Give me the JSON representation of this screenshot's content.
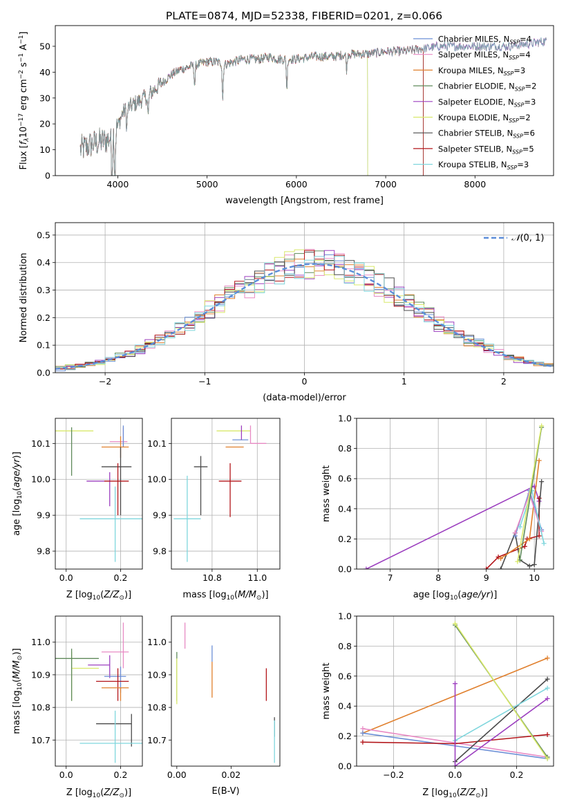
{
  "figure": {
    "title": "PLATE=0874, MJD=52338, FIBERID=0201, z=0.066"
  },
  "colors": {
    "Chabrier MILES": "#6b8fd6",
    "Salpeter MILES": "#e88ac4",
    "Kroupa MILES": "#e07f2c",
    "Chabrier ELODIE": "#5f8a5a",
    "Salpeter ELODIE": "#9c3fbf",
    "Kroupa ELODIE": "#d8e86a",
    "Chabrier STELIB": "#4a4a4a",
    "Salpeter STELIB": "#b3151a",
    "Kroupa STELIB": "#7fd6dd"
  },
  "chart_data": [
    {
      "id": "spectrum",
      "type": "line",
      "title": "PLATE=0874, MJD=52338, FIBERID=0201, z=0.066",
      "xlabel": "wavelength [Angstrom, rest frame]",
      "ylabel": "Flux [f_λ10^{-17} erg cm^{-2} s^{-1} A^{-1}]",
      "ylabel_parts": {
        "pre": "Flux [",
        "f": "f",
        "lam": "λ",
        "ten": "10",
        "e1": "−17",
        "mid": " erg cm",
        "e2": "−2",
        "s": " s",
        "e3": "−1",
        "A": " A",
        "e4": "−1",
        "post": "]"
      },
      "xlim": [
        3300,
        8880
      ],
      "ylim": [
        0,
        58
      ],
      "xticks": [
        4000,
        5000,
        6000,
        7000,
        8000
      ],
      "yticks": [
        0,
        10,
        20,
        30,
        40,
        50
      ],
      "legend_position": "top-right",
      "legend": [
        {
          "model": "Chabrier MILES",
          "n": "4"
        },
        {
          "model": "Salpeter MILES",
          "n": "4"
        },
        {
          "model": "Kroupa MILES",
          "n": "3"
        },
        {
          "model": "Chabrier ELODIE",
          "n": "2"
        },
        {
          "model": "Salpeter ELODIE",
          "n": "3"
        },
        {
          "model": "Kroupa ELODIE",
          "n": "2"
        },
        {
          "model": "Chabrier STELIB",
          "n": "6"
        },
        {
          "model": "Salpeter STELIB",
          "n": "5"
        },
        {
          "model": "Kroupa STELIB",
          "n": "3"
        }
      ],
      "legend_n_label": "N",
      "legend_n_sub": "SSP",
      "continuum": [
        [
          3580,
          10
        ],
        [
          3700,
          12
        ],
        [
          3800,
          13
        ],
        [
          3900,
          14
        ],
        [
          4000,
          19
        ],
        [
          4050,
          24
        ],
        [
          4100,
          26
        ],
        [
          4200,
          28
        ],
        [
          4300,
          30
        ],
        [
          4400,
          33
        ],
        [
          4500,
          36
        ],
        [
          4600,
          39
        ],
        [
          4700,
          41
        ],
        [
          4800,
          42
        ],
        [
          4900,
          43
        ],
        [
          5000,
          44
        ],
        [
          5100,
          44
        ],
        [
          5200,
          43
        ],
        [
          5300,
          44
        ],
        [
          5400,
          45
        ],
        [
          5500,
          45
        ],
        [
          5600,
          45
        ],
        [
          5700,
          46
        ],
        [
          5800,
          45
        ],
        [
          6000,
          45
        ],
        [
          6200,
          46
        ],
        [
          6400,
          46
        ],
        [
          6600,
          47
        ],
        [
          6800,
          47
        ],
        [
          7000,
          48
        ],
        [
          7200,
          48
        ],
        [
          7400,
          49
        ],
        [
          7600,
          50
        ],
        [
          7800,
          50
        ],
        [
          8000,
          50
        ],
        [
          8200,
          50
        ],
        [
          8400,
          50
        ],
        [
          8600,
          51
        ],
        [
          8800,
          52
        ]
      ],
      "absorption_lines": [
        [
          3934,
          20
        ],
        [
          3968,
          18
        ],
        [
          4101,
          8
        ],
        [
          4340,
          9
        ],
        [
          4861,
          8
        ],
        [
          5175,
          14
        ],
        [
          5893,
          12
        ],
        [
          6563,
          6
        ]
      ],
      "model_cutoffs": {
        "Kroupa ELODIE": 6800,
        "Chabrier ELODIE": 6800,
        "Salpeter STELIB": 7420,
        "Kroupa MILES": 7420,
        "Chabrier STELIB": 7420
      }
    },
    {
      "id": "residuals",
      "type": "histogram",
      "xlabel": "(data-model)/error",
      "ylabel": "Normed distribution",
      "xlim": [
        -2.5,
        2.5
      ],
      "ylim": [
        0,
        0.545
      ],
      "xticks": [
        -2,
        -1,
        0,
        1,
        2
      ],
      "yticks": [
        0.0,
        0.1,
        0.2,
        0.3,
        0.4,
        0.5
      ],
      "grid": true,
      "legend_position": "top-right",
      "reference_curve": {
        "label": "𝒩(0, 1)",
        "label_base": "𝒩",
        "label_args": "(0, 1)",
        "mean": 0.1,
        "sigma": 1.0,
        "peak": 0.395,
        "color": "#5b8dd9"
      },
      "bin_width": 0.1
    },
    {
      "id": "age-vs-Z",
      "type": "scatter",
      "xlabel": "Z [log10(Z/Z⊙)]",
      "ylabel": "age [log10(age/yr)]",
      "xlim": [
        -0.04,
        0.28
      ],
      "ylim": [
        9.75,
        10.17
      ],
      "xticks": [
        0.0,
        0.2
      ],
      "yticks": [
        9.8,
        9.9,
        10.0,
        10.1
      ],
      "grid": true,
      "points": [
        {
          "model": "Kroupa ELODIE",
          "x": 0.1,
          "y": 10.135,
          "xerr": [
            0.18,
            0.0
          ],
          "yerr": [
            0.0,
            0.0
          ]
        },
        {
          "model": "Chabrier ELODIE",
          "x": 0.02,
          "y": 10.135,
          "xerr": [
            0.0,
            0.0
          ],
          "yerr": [
            0.125,
            0.01
          ]
        },
        {
          "model": "Salpeter MILES",
          "x": 0.21,
          "y": 10.105,
          "xerr": [
            0.05,
            0.015
          ],
          "yerr": [
            0.015,
            0.04
          ]
        },
        {
          "model": "Chabrier MILES",
          "x": 0.21,
          "y": 10.11,
          "xerr": [
            0.0,
            0.0
          ],
          "yerr": [
            0.02,
            0.04
          ]
        },
        {
          "model": "Kroupa MILES",
          "x": 0.2,
          "y": 10.09,
          "xerr": [
            0.07,
            0.03
          ],
          "yerr": [
            0.03,
            0.03
          ]
        },
        {
          "model": "Chabrier STELIB",
          "x": 0.2,
          "y": 10.035,
          "xerr": [
            0.07,
            0.04
          ],
          "yerr": [
            0.135,
            0.055
          ]
        },
        {
          "model": "Salpeter ELODIE",
          "x": 0.16,
          "y": 9.995,
          "xerr": [
            0.085,
            0.0
          ],
          "yerr": [
            0.07,
            0.025
          ]
        },
        {
          "model": "Salpeter STELIB",
          "x": 0.19,
          "y": 9.995,
          "xerr": [
            0.05,
            0.04
          ],
          "yerr": [
            0.095,
            0.05
          ]
        },
        {
          "model": "Kroupa STELIB",
          "x": 0.18,
          "y": 9.89,
          "xerr": [
            0.13,
            0.1
          ],
          "yerr": [
            0.12,
            0.09
          ]
        }
      ]
    },
    {
      "id": "age-vs-mass",
      "type": "scatter",
      "xlabel": "mass [log10(M/M⊙)]",
      "ylabel": "",
      "xlim": [
        10.62,
        11.1
      ],
      "ylim": [
        9.75,
        10.17
      ],
      "xticks": [
        10.8,
        11.0
      ],
      "yticks": [
        9.8,
        9.9,
        10.0,
        10.1
      ],
      "grid": true,
      "points": [
        {
          "model": "Kroupa ELODIE",
          "x": 10.92,
          "y": 10.135,
          "xerr": [
            0.1,
            0.05
          ],
          "yerr": [
            0.0,
            0.0
          ]
        },
        {
          "model": "Chabrier ELODIE",
          "x": 10.95,
          "y": 10.135,
          "xerr": [
            0.0,
            0.0
          ],
          "yerr": [
            0.0,
            0.0
          ]
        },
        {
          "model": "Salpeter MILES",
          "x": 10.97,
          "y": 10.1,
          "xerr": [
            0.0,
            0.07
          ],
          "yerr": [
            0.0,
            0.05
          ]
        },
        {
          "model": "Chabrier MILES",
          "x": 10.89,
          "y": 10.11,
          "xerr": [
            0.0,
            0.07
          ],
          "yerr": [
            0.0,
            0.0
          ]
        },
        {
          "model": "Kroupa MILES",
          "x": 10.86,
          "y": 10.09,
          "xerr": [
            0.0,
            0.08
          ],
          "yerr": [
            0.0,
            0.0
          ]
        },
        {
          "model": "Salpeter ELODIE",
          "x": 10.93,
          "y": 10.13,
          "xerr": [
            0.0,
            0.0
          ],
          "yerr": [
            0.02,
            0.02
          ]
        },
        {
          "model": "Chabrier STELIB",
          "x": 10.75,
          "y": 10.035,
          "xerr": [
            0.03,
            0.03
          ],
          "yerr": [
            0.135,
            0.03
          ]
        },
        {
          "model": "Salpeter STELIB",
          "x": 10.88,
          "y": 9.995,
          "xerr": [
            0.05,
            0.05
          ],
          "yerr": [
            0.1,
            0.05
          ]
        },
        {
          "model": "Kroupa STELIB",
          "x": 10.69,
          "y": 9.89,
          "xerr": [
            0.06,
            0.06
          ],
          "yerr": [
            0.12,
            0.12
          ]
        }
      ]
    },
    {
      "id": "weight-vs-age",
      "type": "line",
      "xlabel": "age [log10(age/yr)]",
      "ylabel": "mass weight",
      "xlim": [
        6.3,
        10.4
      ],
      "ylim": [
        0,
        1.0
      ],
      "xticks": [
        7,
        8,
        9,
        10
      ],
      "yticks": [
        0.0,
        0.2,
        0.4,
        0.6,
        0.8,
        1.0
      ],
      "grid": true,
      "series": [
        {
          "model": "Salpeter ELODIE",
          "x": [
            6.5,
            10.0,
            10.1
          ],
          "y": [
            0.0,
            0.55,
            0.45
          ]
        },
        {
          "model": "Salpeter STELIB",
          "x": [
            9.0,
            9.25,
            9.8,
            9.85,
            10.1,
            10.1
          ],
          "y": [
            0.0,
            0.08,
            0.15,
            0.2,
            0.22,
            0.47
          ]
        },
        {
          "model": "Chabrier STELIB",
          "x": [
            9.3,
            9.6,
            9.7,
            9.9,
            10.0,
            10.15
          ],
          "y": [
            0.0,
            0.24,
            0.06,
            0.02,
            0.03,
            0.58
          ]
        },
        {
          "model": "Kroupa MILES",
          "x": [
            9.3,
            9.9,
            10.1
          ],
          "y": [
            0.07,
            0.2,
            0.72
          ]
        },
        {
          "model": "Chabrier MILES",
          "x": [
            9.6,
            9.9,
            10.15
          ],
          "y": [
            0.22,
            0.52,
            0.26
          ]
        },
        {
          "model": "Salpeter MILES",
          "x": [
            9.6,
            9.9,
            10.15
          ],
          "y": [
            0.24,
            0.5,
            0.25
          ]
        },
        {
          "model": "Kroupa STELIB",
          "x": [
            9.7,
            9.95,
            10.2
          ],
          "y": [
            0.28,
            0.52,
            0.17
          ]
        },
        {
          "model": "Chabrier ELODIE",
          "x": [
            9.7,
            10.15
          ],
          "y": [
            0.06,
            0.94
          ]
        },
        {
          "model": "Kroupa ELODIE",
          "x": [
            9.65,
            10.15
          ],
          "y": [
            0.05,
            0.95
          ]
        }
      ]
    },
    {
      "id": "mass-vs-Z",
      "type": "scatter",
      "xlabel": "Z [log10(Z/Z⊙)]",
      "ylabel": "mass [log10(M/M⊙)]",
      "xlim": [
        -0.04,
        0.28
      ],
      "ylim": [
        10.62,
        11.08
      ],
      "xticks": [
        0.0,
        0.2
      ],
      "yticks": [
        10.7,
        10.8,
        10.9,
        11.0
      ],
      "grid": true,
      "points": [
        {
          "model": "Salpeter MILES",
          "x": 0.21,
          "y": 10.97,
          "xerr": [
            0.08,
            0.02
          ],
          "yerr": [
            0.05,
            0.09
          ]
        },
        {
          "model": "Kroupa ELODIE",
          "x": 0.02,
          "y": 10.92,
          "xerr": [
            0.0,
            0.1
          ],
          "yerr": [
            0.1,
            0.05
          ]
        },
        {
          "model": "Chabrier ELODIE",
          "x": 0.02,
          "y": 10.95,
          "xerr": [
            0.08,
            0.1
          ],
          "yerr": [
            0.13,
            0.03
          ]
        },
        {
          "model": "Salpeter ELODIE",
          "x": 0.16,
          "y": 10.93,
          "xerr": [
            0.08,
            0.0
          ],
          "yerr": [
            0.04,
            0.03
          ]
        },
        {
          "model": "Chabrier MILES",
          "x": 0.2,
          "y": 10.895,
          "xerr": [
            0.06,
            0.02
          ],
          "yerr": [
            0.05,
            0.03
          ]
        },
        {
          "model": "Salpeter STELIB",
          "x": 0.19,
          "y": 10.88,
          "xerr": [
            0.08,
            0.04
          ],
          "yerr": [
            0.06,
            0.04
          ]
        },
        {
          "model": "Kroupa MILES",
          "x": 0.2,
          "y": 10.86,
          "xerr": [
            0.07,
            0.03
          ],
          "yerr": [
            0.04,
            0.0
          ]
        },
        {
          "model": "Chabrier STELIB",
          "x": 0.24,
          "y": 10.75,
          "xerr": [
            0.13,
            0.0
          ],
          "yerr": [
            0.07,
            0.03
          ]
        },
        {
          "model": "Kroupa STELIB",
          "x": 0.18,
          "y": 10.69,
          "xerr": [
            0.13,
            0.1
          ],
          "yerr": [
            0.06,
            0.1
          ]
        }
      ]
    },
    {
      "id": "mass-vs-ebv",
      "type": "scatter",
      "xlabel": "E(B-V)",
      "ylabel": "",
      "xlim": [
        -0.002,
        0.038
      ],
      "ylim": [
        10.62,
        11.08
      ],
      "xticks": [
        0.0,
        0.02
      ],
      "yticks": [
        10.7,
        10.8,
        10.9,
        11.0
      ],
      "grid": false,
      "points": [
        {
          "model": "Salpeter MILES",
          "x": 0.003,
          "y": 11.0,
          "xerr": [
            0,
            0
          ],
          "yerr": [
            0.02,
            0.06
          ]
        },
        {
          "model": "Chabrier ELODIE",
          "x": 0.0,
          "y": 10.95,
          "xerr": [
            0,
            0
          ],
          "yerr": [
            0.13,
            0.02
          ]
        },
        {
          "model": "Kroupa ELODIE",
          "x": 0.0,
          "y": 10.88,
          "xerr": [
            0,
            0
          ],
          "yerr": [
            0.07,
            0.07
          ]
        },
        {
          "model": "Chabrier MILES",
          "x": 0.013,
          "y": 10.95,
          "xerr": [
            0,
            0
          ],
          "yerr": [
            0.01,
            0.04
          ]
        },
        {
          "model": "Kroupa MILES",
          "x": 0.013,
          "y": 10.89,
          "xerr": [
            0,
            0
          ],
          "yerr": [
            0.06,
            0.05
          ]
        },
        {
          "model": "Salpeter STELIB",
          "x": 0.033,
          "y": 10.87,
          "xerr": [
            0,
            0
          ],
          "yerr": [
            0.05,
            0.05
          ]
        },
        {
          "model": "Chabrier STELIB",
          "x": 0.036,
          "y": 10.74,
          "xerr": [
            0,
            0
          ],
          "yerr": [
            0.03,
            0.03
          ]
        },
        {
          "model": "Kroupa STELIB",
          "x": 0.036,
          "y": 10.7,
          "xerr": [
            0,
            0
          ],
          "yerr": [
            0.07,
            0.06
          ]
        }
      ]
    },
    {
      "id": "weight-vs-Z",
      "type": "line",
      "xlabel": "Z [log10(Z/Z⊙)]",
      "ylabel": "mass weight",
      "xlim": [
        -0.32,
        0.32
      ],
      "ylim": [
        0,
        1.0
      ],
      "xticks": [
        -0.2,
        0.0,
        0.2
      ],
      "yticks": [
        0.0,
        0.2,
        0.4,
        0.6,
        0.8,
        1.0
      ],
      "grid": true,
      "series": [
        {
          "model": "Kroupa MILES",
          "x": [
            -0.3,
            0.3
          ],
          "y": [
            0.22,
            0.72
          ]
        },
        {
          "model": "Salpeter MILES",
          "x": [
            -0.3,
            0.3
          ],
          "y": [
            0.25,
            0.06
          ]
        },
        {
          "model": "Chabrier MILES",
          "x": [
            -0.3,
            0.3
          ],
          "y": [
            0.22,
            0.05
          ]
        },
        {
          "model": "Salpeter STELIB",
          "x": [
            -0.3,
            0.0,
            0.3
          ],
          "y": [
            0.16,
            0.15,
            0.21
          ]
        },
        {
          "model": "Chabrier STELIB",
          "x": [
            0.0,
            0.3
          ],
          "y": [
            0.03,
            0.58
          ]
        },
        {
          "model": "Kroupa STELIB",
          "x": [
            0.0,
            0.3
          ],
          "y": [
            0.17,
            0.52
          ]
        },
        {
          "model": "Salpeter ELODIE",
          "x": [
            0.0,
            0.0,
            0.3
          ],
          "y": [
            0.55,
            0.0,
            0.45
          ]
        },
        {
          "model": "Chabrier ELODIE",
          "x": [
            0.0,
            0.3
          ],
          "y": [
            0.94,
            0.06
          ]
        },
        {
          "model": "Kroupa ELODIE",
          "x": [
            0.0,
            0.3
          ],
          "y": [
            0.95,
            0.05
          ]
        }
      ]
    }
  ]
}
